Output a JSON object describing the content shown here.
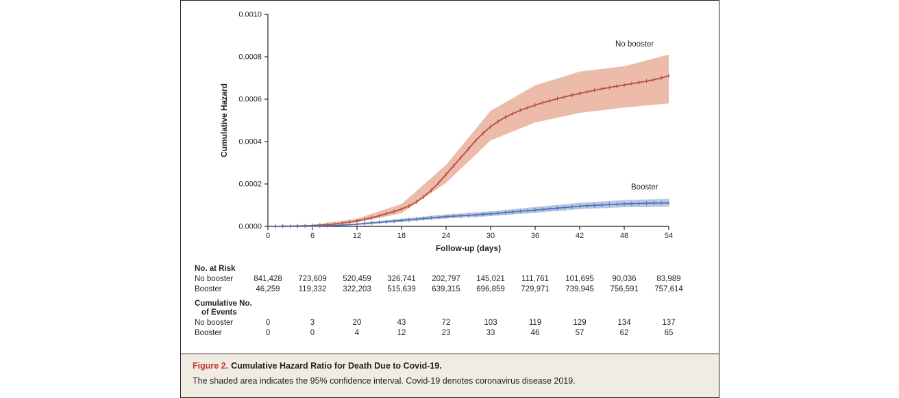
{
  "chart_data": {
    "type": "line",
    "title": "",
    "xlabel": "Follow-up (days)",
    "ylabel": "Cumulative Hazard",
    "xlim": [
      0,
      54
    ],
    "ylim": [
      0,
      0.001
    ],
    "xticks": [
      0,
      6,
      12,
      18,
      24,
      30,
      36,
      42,
      48,
      54
    ],
    "yticks": [
      0,
      0.0002,
      0.0004,
      0.0006,
      0.0008,
      0.001
    ],
    "ytick_decimals": 4,
    "grid": false,
    "legend_position": "end-of-line-labels",
    "series": [
      {
        "name": "No booster",
        "color": "#b64a3f",
        "band_color": "#edbbaa",
        "x_start": 0,
        "x_step": 1,
        "y": [
          0,
          0,
          1e-06,
          1e-06,
          2e-06,
          3e-06,
          4e-06,
          6e-06,
          8e-06,
          1.1e-05,
          1.5e-05,
          2e-05,
          2.6e-05,
          3.3e-05,
          4.1e-05,
          5e-05,
          6e-05,
          7e-05,
          8.2e-05,
          9.6e-05,
          0.000115,
          0.00014,
          0.00017,
          0.000205,
          0.000245,
          0.000285,
          0.000325,
          0.000365,
          0.000405,
          0.00044,
          0.00047,
          0.000495,
          0.000515,
          0.000532,
          0.000547,
          0.00056,
          0.000572,
          0.000583,
          0.000593,
          0.000602,
          0.000611,
          0.000619,
          0.000627,
          0.000635,
          0.000642,
          0.000649,
          0.000655,
          0.000661,
          0.000667,
          0.000673,
          0.000679,
          0.000685,
          0.000692,
          0.0007,
          0.00071
        ],
        "band_x": [
          0,
          6,
          12,
          18,
          24,
          30,
          36,
          42,
          48,
          54
        ],
        "band_lower": [
          0,
          2e-06,
          1.8e-05,
          6.2e-05,
          0.000205,
          0.000405,
          0.00049,
          0.000535,
          0.00056,
          0.00058
        ],
        "band_upper": [
          0,
          7e-06,
          3.6e-05,
          0.000105,
          0.00029,
          0.000545,
          0.000665,
          0.00073,
          0.000755,
          0.00081
        ]
      },
      {
        "name": "Booster",
        "color": "#5470ad",
        "band_color": "#b4c6e6",
        "x_start": 0,
        "x_step": 1,
        "y": [
          0,
          0,
          0,
          0,
          0,
          1e-06,
          1e-06,
          2e-06,
          3e-06,
          4e-06,
          6e-06,
          8e-06,
          1e-05,
          1.3e-05,
          1.6e-05,
          1.9e-05,
          2.2e-05,
          2.5e-05,
          2.8e-05,
          3.1e-05,
          3.4e-05,
          3.7e-05,
          4e-05,
          4.3e-05,
          4.6e-05,
          4.8e-05,
          5e-05,
          5.2e-05,
          5.4e-05,
          5.7e-05,
          5.9e-05,
          6.2e-05,
          6.5e-05,
          6.8e-05,
          7.1e-05,
          7.4e-05,
          7.7e-05,
          8e-05,
          8.3e-05,
          8.6e-05,
          8.9e-05,
          9.2e-05,
          9.5e-05,
          9.7e-05,
          9.9e-05,
          0.000101,
          0.000103,
          0.000104,
          0.000106,
          0.000107,
          0.000108,
          0.000109,
          0.00011,
          0.00011,
          0.00011
        ],
        "band_x": [
          0,
          6,
          12,
          18,
          24,
          30,
          36,
          42,
          48,
          54
        ],
        "band_lower": [
          0,
          0,
          7e-06,
          2.1e-05,
          3.7e-05,
          4.8e-05,
          6.4e-05,
          8.1e-05,
          9e-05,
          9.3e-05
        ],
        "band_upper": [
          0,
          2e-06,
          1.4e-05,
          3.6e-05,
          5.6e-05,
          7.1e-05,
          9.1e-05,
          0.000111,
          0.000124,
          0.00013
        ]
      }
    ]
  },
  "risk_table": {
    "header": "No. at Risk",
    "rows": [
      {
        "label": "No booster",
        "values": [
          "841,428",
          "723,609",
          "520,459",
          "326,741",
          "202,797",
          "145,021",
          "111,761",
          "101,695",
          "90,036",
          "83,989"
        ]
      },
      {
        "label": "Booster",
        "values": [
          "46,259",
          "119,332",
          "322,203",
          "515,639",
          "639,315",
          "696,859",
          "729,971",
          "739,945",
          "756,591",
          "757,614"
        ]
      }
    ]
  },
  "events_table": {
    "header_line1": "Cumulative No.",
    "header_line2": "of Events",
    "rows": [
      {
        "label": "No booster",
        "values": [
          "0",
          "3",
          "20",
          "43",
          "72",
          "103",
          "119",
          "129",
          "134",
          "137"
        ]
      },
      {
        "label": "Booster",
        "values": [
          "0",
          "0",
          "4",
          "12",
          "23",
          "33",
          "46",
          "57",
          "62",
          "65"
        ]
      }
    ]
  },
  "caption": {
    "figure_label": "Figure 2.",
    "title": "Cumulative Hazard Ratio for Death Due to Covid-19.",
    "description": "The shaded area indicates the 95% confidence interval. Covid-19 denotes coronavirus disease 2019.",
    "accent_color": "#c5352c",
    "background": "#f0ece1"
  }
}
